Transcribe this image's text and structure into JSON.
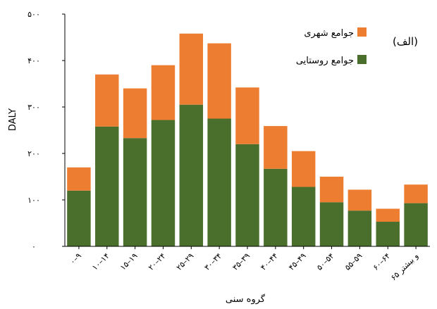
{
  "chart_data": {
    "type": "bar",
    "stacked": true,
    "categories": [
      "۰–۹",
      "۱۰–۱۴",
      "۱۵–۱۹",
      "۲۰–۲۴",
      "۲۵–۲۹",
      "۳۰–۳۴",
      "۳۵–۳۹",
      "۴۰–۴۴",
      "۴۵–۴۹",
      "۵۰–۵۴",
      "۵۵–۵۹",
      "۶۰–۶۴",
      "۶۵ و بیشتر"
    ],
    "series": [
      {
        "name": "جوامع روستایی",
        "color": "#4a6e2c",
        "values": [
          120,
          258,
          233,
          272,
          305,
          275,
          220,
          167,
          128,
          95,
          77,
          53,
          93
        ]
      },
      {
        "name": "جوامع شهری",
        "color": "#ed7d31",
        "values": [
          50,
          112,
          107,
          118,
          153,
          162,
          122,
          92,
          77,
          55,
          45,
          28,
          40
        ]
      }
    ],
    "ylabel": "DALY",
    "xlabel": "گروه سنی",
    "ylim": [
      0,
      500
    ],
    "yticks": [
      0,
      100,
      200,
      300,
      400,
      500
    ],
    "ytick_labels": [
      "۰",
      "۱۰۰",
      "۲۰۰",
      "۳۰۰",
      "۴۰۰",
      "۵۰۰"
    ],
    "annotation": "(الف)",
    "legend": [
      "جوامع شهری",
      "جوامع روستایی"
    ],
    "legend_position": "top-right",
    "grid": false
  }
}
